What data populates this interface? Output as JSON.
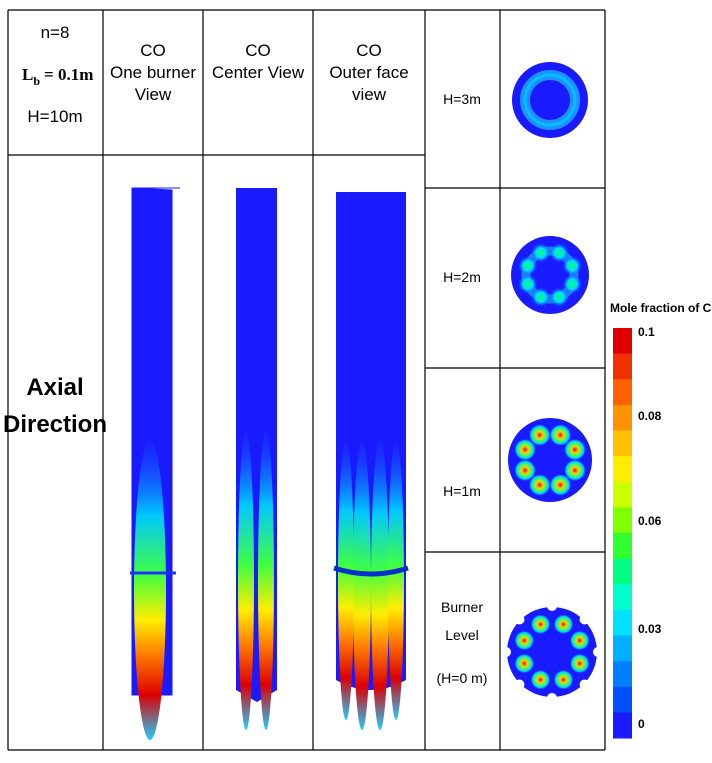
{
  "header": {
    "params": {
      "n": "n=8",
      "lb_symbol": "L",
      "lb_subscript": "b",
      "lb_value": "= 0.1m",
      "height": "H=10m"
    },
    "columns": [
      [
        "CO",
        "One burner",
        "View"
      ],
      [
        "CO",
        "Center View"
      ],
      [
        "CO",
        "Outer face",
        "view"
      ]
    ]
  },
  "row_label": [
    "Axial",
    "Direction"
  ],
  "sections": [
    [
      "H=3m"
    ],
    [
      "H=2m"
    ],
    [
      "H=1m"
    ],
    [
      "Burner",
      "Level",
      "(H=0 m)"
    ]
  ],
  "colorbar": {
    "title": "Mole fraction of  CO",
    "labels": [
      "0.1",
      "0.08",
      "0.06",
      "0.03",
      "0"
    ]
  }
}
